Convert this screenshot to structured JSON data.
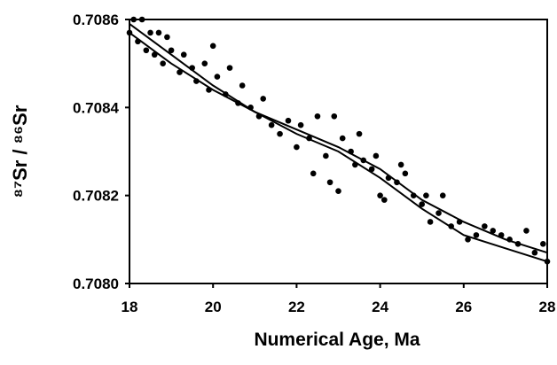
{
  "chart_data": {
    "type": "scatter",
    "x_label": "Numerical Age, Ma",
    "y_label": "⁸⁷Sr / ⁸⁶Sr",
    "xlim": [
      18,
      28
    ],
    "xticks": [
      18,
      20,
      22,
      24,
      26,
      28
    ],
    "ylim": [
      0.708,
      0.7086
    ],
    "yticks": [
      {
        "value": 0.708,
        "label": "0.7080"
      },
      0.7082,
      0.7084,
      0.7086
    ],
    "grid": false,
    "series": [
      {
        "type": "scatter",
        "color": "#000000",
        "x": [
          18.0,
          18.1,
          18.2,
          18.3,
          18.4,
          18.5,
          18.6,
          18.7,
          18.8,
          18.9,
          19.0,
          19.2,
          19.3,
          19.5,
          19.6,
          19.8,
          19.9,
          20.0,
          20.1,
          20.3,
          20.4,
          20.6,
          20.7,
          20.9,
          21.1,
          21.2,
          21.4,
          21.6,
          21.8,
          22.0,
          22.1,
          22.3,
          22.4,
          22.5,
          22.7,
          22.8,
          22.9,
          23.0,
          23.1,
          23.3,
          23.4,
          23.5,
          23.6,
          23.8,
          23.9,
          24.0,
          24.1,
          24.2,
          24.4,
          24.5,
          24.6,
          24.8,
          25.0,
          25.1,
          25.2,
          25.4,
          25.5,
          25.7,
          25.9,
          26.1,
          26.3,
          26.5,
          26.7,
          26.9,
          27.1,
          27.3,
          27.5,
          27.7,
          27.9,
          28.0
        ],
        "values": [
          0.70857,
          0.7086,
          0.70855,
          0.7086,
          0.70853,
          0.70857,
          0.70852,
          0.70857,
          0.7085,
          0.70856,
          0.70853,
          0.70848,
          0.70852,
          0.70849,
          0.70846,
          0.7085,
          0.70844,
          0.70854,
          0.70847,
          0.70843,
          0.70849,
          0.70841,
          0.70845,
          0.7084,
          0.70838,
          0.70842,
          0.70836,
          0.70834,
          0.70837,
          0.70831,
          0.70836,
          0.70833,
          0.70825,
          0.70838,
          0.70829,
          0.70823,
          0.70838,
          0.70821,
          0.70833,
          0.7083,
          0.70827,
          0.70834,
          0.70828,
          0.70826,
          0.70829,
          0.7082,
          0.70819,
          0.70824,
          0.70823,
          0.70827,
          0.70825,
          0.7082,
          0.70818,
          0.7082,
          0.70814,
          0.70816,
          0.7082,
          0.70813,
          0.70814,
          0.7081,
          0.70811,
          0.70813,
          0.70812,
          0.70811,
          0.7081,
          0.70809,
          0.70812,
          0.70807,
          0.70809,
          0.70805
        ]
      },
      {
        "type": "line",
        "color": "#000000",
        "x": [
          18,
          19,
          20,
          21,
          22,
          23,
          24,
          25,
          26,
          27,
          28
        ],
        "values": [
          0.70859,
          0.70852,
          0.70845,
          0.70839,
          0.70835,
          0.70831,
          0.70826,
          0.70819,
          0.70814,
          0.7081,
          0.70807
        ]
      },
      {
        "type": "line",
        "color": "#000000",
        "x": [
          18,
          19,
          20,
          21,
          22,
          23,
          24,
          25,
          26,
          27,
          28
        ],
        "values": [
          0.70857,
          0.7085,
          0.70844,
          0.70839,
          0.70834,
          0.7083,
          0.70824,
          0.70817,
          0.70811,
          0.70808,
          0.70805
        ]
      }
    ]
  }
}
